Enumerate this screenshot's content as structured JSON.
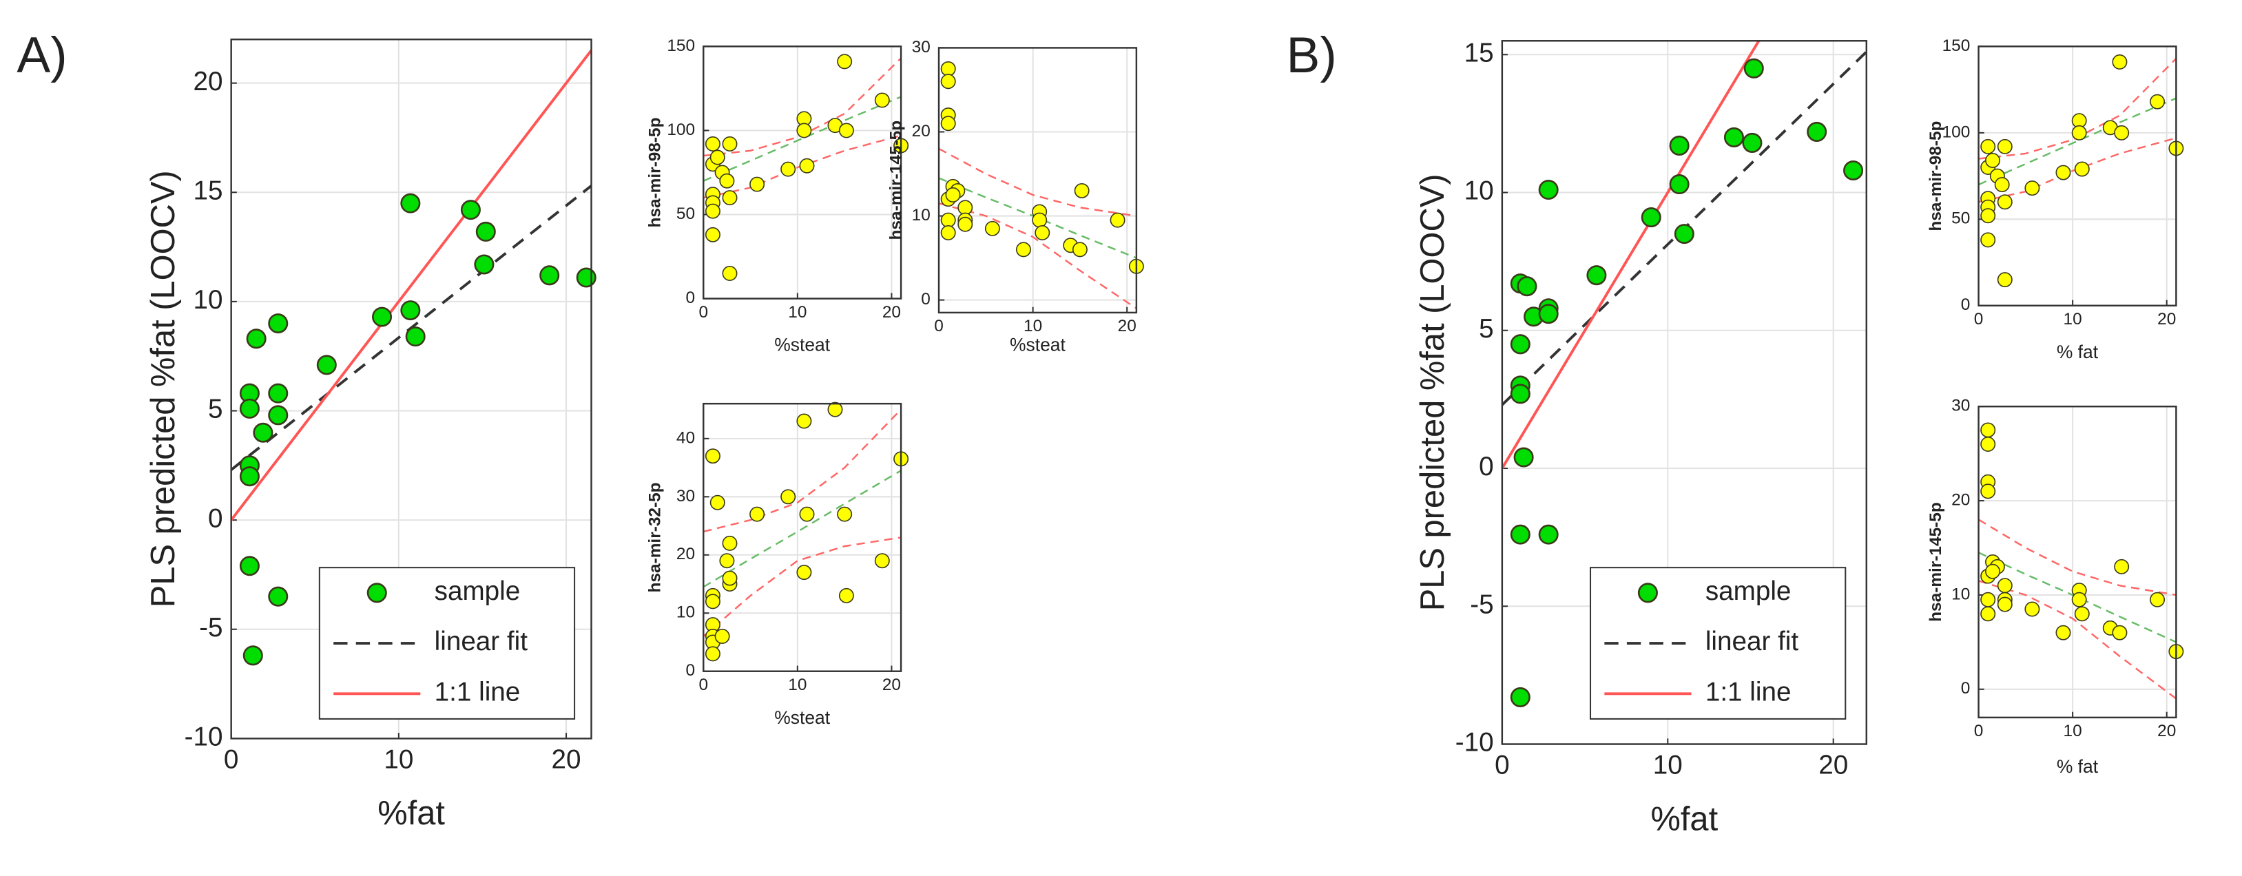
{
  "panels": [
    "A)",
    "B)"
  ],
  "chart_data": [
    {
      "type": "scatter",
      "xlabel": "%fat",
      "ylabel": "PLS predicted %fat (LOOCV)",
      "xlim": [
        0,
        21.5
      ],
      "ylim": [
        -10,
        22
      ],
      "xticks": [
        0,
        10,
        20
      ],
      "yticks": [
        -10,
        -5,
        0,
        5,
        10,
        15,
        20
      ],
      "grid": true,
      "legend": "lower right",
      "series": [
        {
          "name": "sample",
          "color": "#00dd00",
          "x": [
            1.5,
            2.8,
            1.1,
            1.1,
            2.8,
            2.8,
            1.9,
            1.1,
            1.1,
            1.1,
            2.8,
            1.3,
            5.7,
            9.0,
            10.7,
            10.7,
            11.0,
            14.3,
            15.2,
            15.1,
            19.0,
            21.2
          ],
          "values": [
            8.3,
            9.0,
            5.8,
            5.1,
            5.8,
            4.8,
            4.0,
            2.5,
            2.0,
            -2.1,
            -3.5,
            -6.2,
            7.1,
            9.3,
            9.6,
            14.5,
            8.4,
            14.2,
            13.2,
            11.7,
            11.2,
            11.1
          ]
        },
        {
          "name": "linear fit",
          "type": "line",
          "dash": true,
          "color": "#333333",
          "x": [
            0,
            21.5
          ],
          "values": [
            2.3,
            15.3
          ]
        },
        {
          "name": "1:1 line",
          "type": "line",
          "color": "#ff5555",
          "x": [
            0,
            21.5
          ],
          "values": [
            0,
            21.5
          ]
        }
      ]
    },
    {
      "type": "scatter",
      "xlabel": "%steat",
      "ylabel": "hsa-mir-98-5p",
      "xlim": [
        0,
        21
      ],
      "ylim": [
        0,
        150
      ],
      "xticks": [
        0,
        10,
        20
      ],
      "yticks": [
        0,
        50,
        100,
        150
      ],
      "grid": true,
      "series": [
        {
          "color": "#ffff00",
          "x": [
            1,
            2.8,
            1,
            1.5,
            2,
            2.5,
            1,
            1,
            1,
            1,
            2.8,
            2.8,
            5.7,
            9,
            10.7,
            10.7,
            11,
            14,
            15.2,
            15,
            19,
            21
          ],
          "values": [
            92,
            92,
            80,
            84,
            75,
            70,
            62,
            57,
            52,
            38,
            60,
            15,
            68,
            77,
            107,
            100,
            79,
            103,
            100,
            141,
            118,
            91
          ]
        },
        {
          "type": "line",
          "dash": true,
          "color": "#66bb66",
          "x": [
            0,
            5,
            10,
            15,
            21
          ],
          "values": [
            70,
            82,
            94,
            106,
            120
          ]
        },
        {
          "type": "line",
          "dash": true,
          "color": "#ff6666",
          "x": [
            0,
            5,
            10,
            15,
            21
          ],
          "values": [
            85,
            88,
            96,
            110,
            143
          ]
        },
        {
          "type": "line",
          "dash": true,
          "color": "#ff6666",
          "x": [
            0,
            5,
            10,
            15,
            21
          ],
          "values": [
            60,
            66,
            78,
            88,
            97
          ]
        }
      ]
    },
    {
      "type": "scatter",
      "xlabel": "%steat",
      "ylabel": "hsa-mir-145-5p",
      "xlim": [
        0,
        21
      ],
      "ylim": [
        -1.5,
        30
      ],
      "xticks": [
        0,
        10,
        20
      ],
      "yticks": [
        0,
        10,
        20,
        30
      ],
      "grid": true,
      "series": [
        {
          "color": "#ffff00",
          "x": [
            1,
            1,
            1,
            1,
            1.5,
            2,
            1,
            1.5,
            2.8,
            2.8,
            2.8,
            1,
            1,
            5.7,
            9,
            10.7,
            10.7,
            11,
            14,
            15,
            15.2,
            19,
            21
          ],
          "values": [
            27.5,
            26,
            22,
            21,
            13.5,
            13,
            12,
            12.5,
            11,
            9.5,
            9,
            9.5,
            8,
            8.5,
            6,
            10.5,
            9.5,
            8,
            6.5,
            6,
            13,
            9.5,
            4
          ]
        },
        {
          "type": "line",
          "dash": true,
          "color": "#66bb66",
          "x": [
            0,
            5,
            10,
            15,
            21
          ],
          "values": [
            14.5,
            12.2,
            10,
            7.7,
            5
          ]
        },
        {
          "type": "line",
          "dash": true,
          "color": "#ff6666",
          "x": [
            0,
            5,
            10,
            15,
            21
          ],
          "values": [
            18,
            15,
            12.5,
            11,
            10
          ]
        },
        {
          "type": "line",
          "dash": true,
          "color": "#ff6666",
          "x": [
            0,
            5,
            10,
            15,
            21
          ],
          "values": [
            11.5,
            10,
            7.5,
            3.5,
            -1
          ]
        }
      ]
    },
    {
      "type": "scatter",
      "xlabel": "%steat",
      "ylabel": "hsa-mir-32-5p",
      "xlim": [
        0,
        21
      ],
      "ylim": [
        0,
        46
      ],
      "xticks": [
        0,
        10,
        20
      ],
      "yticks": [
        0,
        10,
        20,
        30,
        40
      ],
      "grid": true,
      "series": [
        {
          "color": "#ffff00",
          "x": [
            1,
            1.5,
            1,
            1,
            1,
            1,
            1,
            1,
            2,
            2.8,
            2.5,
            2.8,
            2.8,
            5.7,
            9,
            10.7,
            10.7,
            11,
            14,
            15,
            15.2,
            19,
            21
          ],
          "values": [
            37,
            29,
            13,
            12,
            8,
            6,
            5,
            3,
            6,
            22,
            19,
            15,
            16,
            27,
            30,
            43,
            17,
            27,
            45,
            27,
            13,
            19,
            36.5
          ]
        },
        {
          "type": "line",
          "dash": true,
          "color": "#66bb66",
          "x": [
            0,
            5,
            10,
            15,
            21
          ],
          "values": [
            14.5,
            19.3,
            24,
            28.8,
            34.5
          ]
        },
        {
          "type": "line",
          "dash": true,
          "color": "#ff6666",
          "x": [
            0,
            5,
            10,
            15,
            21
          ],
          "values": [
            24,
            26,
            29,
            35,
            45
          ]
        },
        {
          "type": "line",
          "dash": true,
          "color": "#ff6666",
          "x": [
            0,
            5,
            10,
            15,
            21
          ],
          "values": [
            6,
            13,
            19,
            21.5,
            23
          ]
        }
      ]
    },
    {
      "type": "scatter",
      "xlabel": "%fat",
      "ylabel": "PLS predicted %fat (LOOCV)",
      "xlim": [
        0,
        22
      ],
      "ylim": [
        -10,
        15.5
      ],
      "xticks": [
        0,
        10,
        20
      ],
      "yticks": [
        -10,
        -5,
        0,
        5,
        10,
        15
      ],
      "grid": true,
      "legend": "lower right",
      "series": [
        {
          "name": "sample",
          "color": "#00dd00",
          "x": [
            1.1,
            1.5,
            1.1,
            1.1,
            1.1,
            1.3,
            1.1,
            2.8,
            1.1,
            1.9,
            2.8,
            2.8,
            2.8,
            5.7,
            9.0,
            10.7,
            10.7,
            11.0,
            14.0,
            15.1,
            15.2,
            19.0,
            21.2
          ],
          "values": [
            6.7,
            6.6,
            4.5,
            3.0,
            2.7,
            0.4,
            -2.4,
            -2.4,
            -8.3,
            5.5,
            5.8,
            5.6,
            10.1,
            7.0,
            9.1,
            11.7,
            10.3,
            8.5,
            12.0,
            11.8,
            14.5,
            12.2,
            10.8
          ]
        },
        {
          "name": "linear fit",
          "type": "line",
          "dash": true,
          "color": "#333333",
          "x": [
            0,
            22
          ],
          "values": [
            2.3,
            15.1
          ]
        },
        {
          "name": "1:1 line",
          "type": "line",
          "color": "#ff5555",
          "x": [
            0,
            15.5
          ],
          "values": [
            0,
            15.5
          ]
        }
      ]
    },
    {
      "type": "scatter",
      "xlabel": "% fat",
      "ylabel": "hsa-mir-98-5p",
      "xlim": [
        0,
        21
      ],
      "ylim": [
        0,
        150
      ],
      "xticks": [
        0,
        10,
        20
      ],
      "yticks": [
        0,
        50,
        100,
        150
      ],
      "grid": true,
      "series": [
        {
          "color": "#ffff00",
          "x": [
            1,
            2.8,
            1,
            1.5,
            2,
            2.5,
            1,
            1,
            1,
            1,
            2.8,
            2.8,
            5.7,
            9,
            10.7,
            10.7,
            11,
            14,
            15.2,
            15,
            19,
            21
          ],
          "values": [
            92,
            92,
            80,
            84,
            75,
            70,
            62,
            57,
            52,
            38,
            60,
            15,
            68,
            77,
            107,
            100,
            79,
            103,
            100,
            141,
            118,
            91
          ]
        },
        {
          "type": "line",
          "dash": true,
          "color": "#66bb66",
          "x": [
            0,
            5,
            10,
            15,
            21
          ],
          "values": [
            70,
            82,
            94,
            106,
            120
          ]
        },
        {
          "type": "line",
          "dash": true,
          "color": "#ff6666",
          "x": [
            0,
            5,
            10,
            15,
            21
          ],
          "values": [
            85,
            88,
            96,
            110,
            143
          ]
        },
        {
          "type": "line",
          "dash": true,
          "color": "#ff6666",
          "x": [
            0,
            5,
            10,
            15,
            21
          ],
          "values": [
            60,
            66,
            78,
            88,
            97
          ]
        }
      ]
    },
    {
      "type": "scatter",
      "xlabel": "% fat",
      "ylabel": "hsa-mir-145-5p",
      "xlim": [
        0,
        21
      ],
      "ylim": [
        -3,
        30
      ],
      "xticks": [
        0,
        10,
        20
      ],
      "yticks": [
        0,
        10,
        20,
        30
      ],
      "grid": true,
      "series": [
        {
          "color": "#ffff00",
          "x": [
            1,
            1,
            1,
            1,
            1.5,
            2,
            1,
            1.5,
            2.8,
            2.8,
            2.8,
            1,
            1,
            5.7,
            9,
            10.7,
            10.7,
            11,
            14,
            15,
            15.2,
            19,
            21
          ],
          "values": [
            27.5,
            26,
            22,
            21,
            13.5,
            13,
            12,
            12.5,
            11,
            9.5,
            9,
            9.5,
            8,
            8.5,
            6,
            10.5,
            9.5,
            8,
            6.5,
            6,
            13,
            9.5,
            4
          ]
        },
        {
          "type": "line",
          "dash": true,
          "color": "#66bb66",
          "x": [
            0,
            5,
            10,
            15,
            21
          ],
          "values": [
            14.5,
            12.2,
            10,
            7.7,
            5
          ]
        },
        {
          "type": "line",
          "dash": true,
          "color": "#ff6666",
          "x": [
            0,
            5,
            10,
            15,
            21
          ],
          "values": [
            18,
            15,
            12.5,
            11,
            10
          ]
        },
        {
          "type": "line",
          "dash": true,
          "color": "#ff6666",
          "x": [
            0,
            5,
            10,
            15,
            21
          ],
          "values": [
            11.5,
            10,
            7.5,
            3.5,
            -1
          ]
        }
      ]
    }
  ]
}
